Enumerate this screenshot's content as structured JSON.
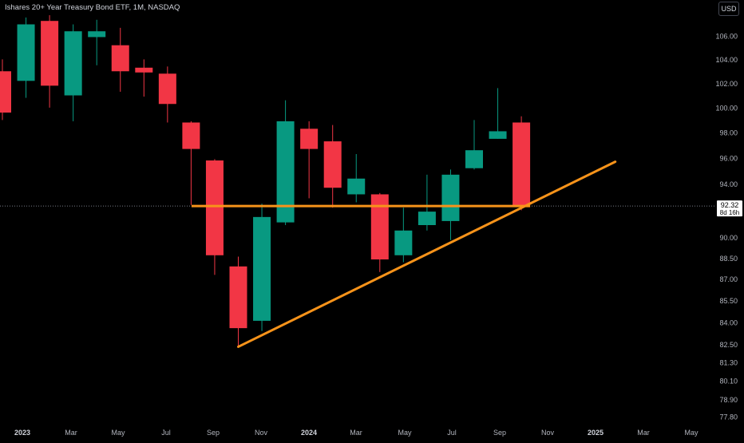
{
  "header": {
    "title": "Ishares 20+ Year Treasury Bond ETF, 1M, NASDAQ",
    "currency": "USD"
  },
  "price_label": {
    "price": "92.32",
    "countdown": "8d 16h"
  },
  "colors": {
    "background": "#000000",
    "up": "#089981",
    "down": "#f23645",
    "trendline": "#f7931a",
    "axis_text": "#b2b5be",
    "price_label_bg": "#ffffff",
    "price_label_text": "#000000"
  },
  "chart_data": {
    "type": "candlestick",
    "title": "Ishares 20+ Year Treasury Bond ETF, 1M, NASDAQ",
    "interval": "1M",
    "exchange": "NASDAQ",
    "y_axis_ticks": [
      "106.00",
      "104.00",
      "102.00",
      "100.00",
      "98.00",
      "96.00",
      "94.00",
      "92.00",
      "90.00",
      "88.50",
      "87.00",
      "85.50",
      "84.00",
      "82.50",
      "81.30",
      "80.10",
      "78.90",
      "77.80"
    ],
    "y_axis_scale": "log",
    "x_axis_ticks": [
      "2023",
      "Mar",
      "May",
      "Jul",
      "Sep",
      "Nov",
      "2024",
      "Mar",
      "May",
      "Jul",
      "Sep",
      "Nov",
      "2025",
      "Mar",
      "May"
    ],
    "current_price": 92.32,
    "candles": [
      {
        "date": "2022-12",
        "open": 103.0,
        "high": 104.0,
        "low": 99.0,
        "close": 99.6
      },
      {
        "date": "2023-01",
        "open": 102.2,
        "high": 107.6,
        "low": 100.8,
        "close": 107.0
      },
      {
        "date": "2023-02",
        "open": 107.3,
        "high": 107.8,
        "low": 100.0,
        "close": 101.8
      },
      {
        "date": "2023-03",
        "open": 101.0,
        "high": 107.0,
        "low": 98.9,
        "close": 106.4
      },
      {
        "date": "2023-04",
        "open": 105.9,
        "high": 107.4,
        "low": 103.5,
        "close": 106.4
      },
      {
        "date": "2023-05",
        "open": 105.2,
        "high": 106.7,
        "low": 101.3,
        "close": 103.0
      },
      {
        "date": "2023-06",
        "open": 103.3,
        "high": 104.0,
        "low": 100.9,
        "close": 102.9
      },
      {
        "date": "2023-07",
        "open": 102.8,
        "high": 103.4,
        "low": 98.8,
        "close": 100.3
      },
      {
        "date": "2023-08",
        "open": 98.8,
        "high": 98.9,
        "low": 92.4,
        "close": 96.7
      },
      {
        "date": "2023-09",
        "open": 95.8,
        "high": 95.9,
        "low": 87.3,
        "close": 88.7
      },
      {
        "date": "2023-10",
        "open": 87.9,
        "high": 88.6,
        "low": 82.4,
        "close": 83.6
      },
      {
        "date": "2023-11",
        "open": 84.1,
        "high": 92.5,
        "low": 83.4,
        "close": 91.5
      },
      {
        "date": "2023-12",
        "open": 91.1,
        "high": 100.6,
        "low": 90.9,
        "close": 98.9
      },
      {
        "date": "2024-01",
        "open": 98.3,
        "high": 98.9,
        "low": 92.9,
        "close": 96.7
      },
      {
        "date": "2024-02",
        "open": 97.3,
        "high": 98.6,
        "low": 92.2,
        "close": 93.7
      },
      {
        "date": "2024-03",
        "open": 93.2,
        "high": 96.3,
        "low": 92.6,
        "close": 94.4
      },
      {
        "date": "2024-04",
        "open": 93.2,
        "high": 93.3,
        "low": 87.5,
        "close": 88.4
      },
      {
        "date": "2024-05",
        "open": 88.7,
        "high": 92.2,
        "low": 88.2,
        "close": 90.5
      },
      {
        "date": "2024-06",
        "open": 90.9,
        "high": 94.7,
        "low": 90.5,
        "close": 91.9
      },
      {
        "date": "2024-07",
        "open": 91.2,
        "high": 95.1,
        "low": 89.8,
        "close": 94.7
      },
      {
        "date": "2024-08",
        "open": 95.2,
        "high": 99.0,
        "low": 95.1,
        "close": 96.6
      },
      {
        "date": "2024-09",
        "open": 97.5,
        "high": 101.6,
        "low": 97.5,
        "close": 98.1
      },
      {
        "date": "2024-10",
        "open": 98.8,
        "high": 99.3,
        "low": 92.0,
        "close": 92.32
      }
    ],
    "drawings": [
      {
        "type": "horizontal_segment",
        "from_date": "2023-08",
        "to_date": "2024-10",
        "price": 92.32
      },
      {
        "type": "trendline",
        "from": {
          "date": "2023-10",
          "price": 82.4
        },
        "to": {
          "date": "2025-01",
          "price": 95.7
        }
      }
    ],
    "grid": false,
    "legend": "none"
  }
}
